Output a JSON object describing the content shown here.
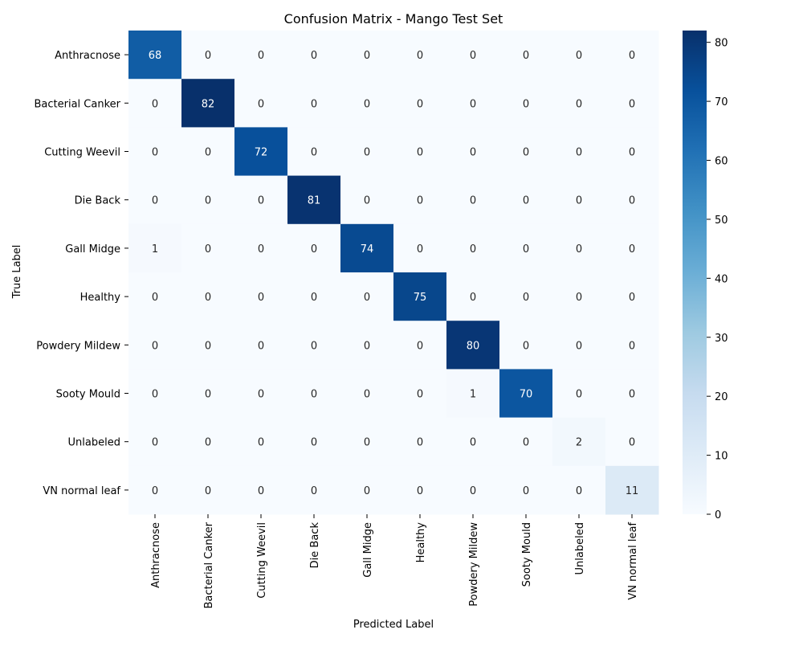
{
  "chart_data": {
    "type": "heatmap",
    "title": "Confusion Matrix - Mango Test Set",
    "xlabel": "Predicted Label",
    "ylabel": "True Label",
    "x_categories": [
      "Anthracnose",
      "Bacterial Canker",
      "Cutting Weevil",
      "Die Back",
      "Gall Midge",
      "Healthy",
      "Powdery Mildew",
      "Sooty Mould",
      "Unlabeled",
      "VN normal leaf"
    ],
    "y_categories": [
      "Anthracnose",
      "Bacterial Canker",
      "Cutting Weevil",
      "Die Back",
      "Gall Midge",
      "Healthy",
      "Powdery Mildew",
      "Sooty Mould",
      "Unlabeled",
      "VN normal leaf"
    ],
    "matrix": [
      [
        68,
        0,
        0,
        0,
        0,
        0,
        0,
        0,
        0,
        0
      ],
      [
        0,
        82,
        0,
        0,
        0,
        0,
        0,
        0,
        0,
        0
      ],
      [
        0,
        0,
        72,
        0,
        0,
        0,
        0,
        0,
        0,
        0
      ],
      [
        0,
        0,
        0,
        81,
        0,
        0,
        0,
        0,
        0,
        0
      ],
      [
        1,
        0,
        0,
        0,
        74,
        0,
        0,
        0,
        0,
        0
      ],
      [
        0,
        0,
        0,
        0,
        0,
        75,
        0,
        0,
        0,
        0
      ],
      [
        0,
        0,
        0,
        0,
        0,
        0,
        80,
        0,
        0,
        0
      ],
      [
        0,
        0,
        0,
        0,
        0,
        0,
        1,
        70,
        0,
        0
      ],
      [
        0,
        0,
        0,
        0,
        0,
        0,
        0,
        0,
        2,
        0
      ],
      [
        0,
        0,
        0,
        0,
        0,
        0,
        0,
        0,
        0,
        11
      ]
    ],
    "colormap": "Blues",
    "color_range": [
      0,
      82
    ],
    "colorbar_ticks": [
      0,
      10,
      20,
      30,
      40,
      50,
      60,
      70,
      80
    ],
    "annotations": true,
    "grid": false
  }
}
